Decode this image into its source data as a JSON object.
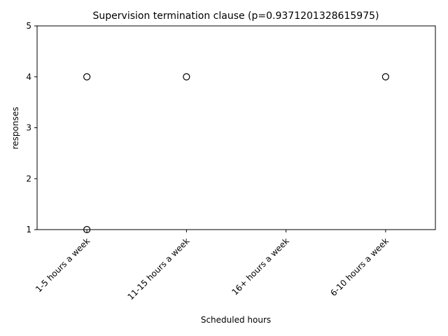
{
  "chart_data": {
    "type": "box",
    "title": "Supervision termination clause (p=0.9371201328615975)",
    "xlabel": "Scheduled hours",
    "ylabel": "responses",
    "categories": [
      "1-5 hours a week",
      "11-15 hours a week",
      "16+ hours a week",
      "6-10 hours a week"
    ],
    "ylim": [
      1,
      5
    ],
    "yticks": [
      1,
      2,
      3,
      4,
      5
    ],
    "boxes": [
      {
        "category": "1-5 hours a week",
        "q1": 5,
        "median": 5,
        "q3": 5,
        "whisker_low": 5,
        "whisker_high": 5,
        "outliers": [
          4,
          1
        ]
      },
      {
        "category": "11-15 hours a week",
        "q1": 5,
        "median": 5,
        "q3": 5,
        "whisker_low": 5,
        "whisker_high": 5,
        "outliers": [
          4
        ]
      },
      {
        "category": "16+ hours a week",
        "q1": 5,
        "median": 5,
        "q3": 5,
        "whisker_low": 5,
        "whisker_high": 5,
        "outliers": []
      },
      {
        "category": "6-10 hours a week",
        "q1": 5,
        "median": 5,
        "q3": 5,
        "whisker_low": 5,
        "whisker_high": 5,
        "outliers": [
          4
        ]
      }
    ],
    "grid": false,
    "legend": "none"
  }
}
